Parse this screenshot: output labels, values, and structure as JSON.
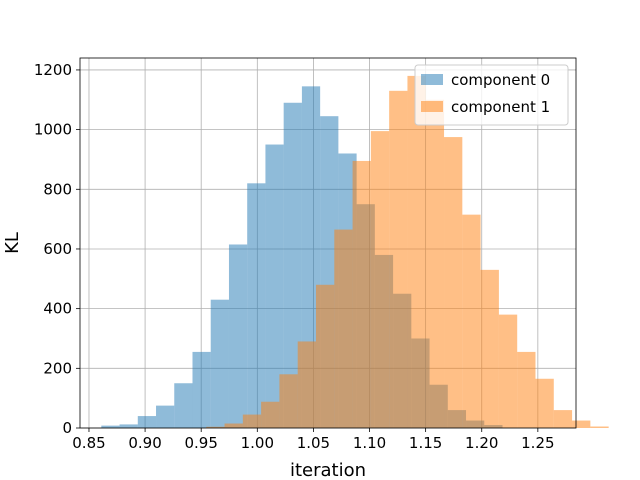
{
  "chart_data": {
    "type": "bar",
    "subtype": "histogram-overlay",
    "title": "",
    "xlabel": "iteration",
    "ylabel": "KL",
    "xlim": [
      0.842,
      1.284
    ],
    "ylim": [
      0,
      1240
    ],
    "xticks": [
      "0.85",
      "0.90",
      "0.95",
      "1.00",
      "1.05",
      "1.10",
      "1.15",
      "1.20",
      "1.25"
    ],
    "yticks": [
      "0",
      "200",
      "400",
      "600",
      "800",
      "1000",
      "1200"
    ],
    "grid": true,
    "legend_position": "top-right",
    "series": [
      {
        "name": "component 0",
        "color": "#1f77b4",
        "opacity": 0.5,
        "bin_start": 0.861,
        "bin_width": 0.01625,
        "counts": [
          8,
          12,
          40,
          75,
          150,
          255,
          430,
          615,
          820,
          950,
          1090,
          1145,
          1045,
          920,
          750,
          580,
          450,
          300,
          145,
          60,
          25,
          10
        ]
      },
      {
        "name": "component 1",
        "color": "#ff7f0e",
        "opacity": 0.5,
        "bin_start": 0.9545,
        "bin_width": 0.0163,
        "counts": [
          4,
          15,
          45,
          88,
          180,
          290,
          480,
          665,
          895,
          995,
          1130,
          1180,
          1100,
          975,
          715,
          530,
          380,
          255,
          165,
          60,
          25,
          5
        ]
      }
    ]
  }
}
